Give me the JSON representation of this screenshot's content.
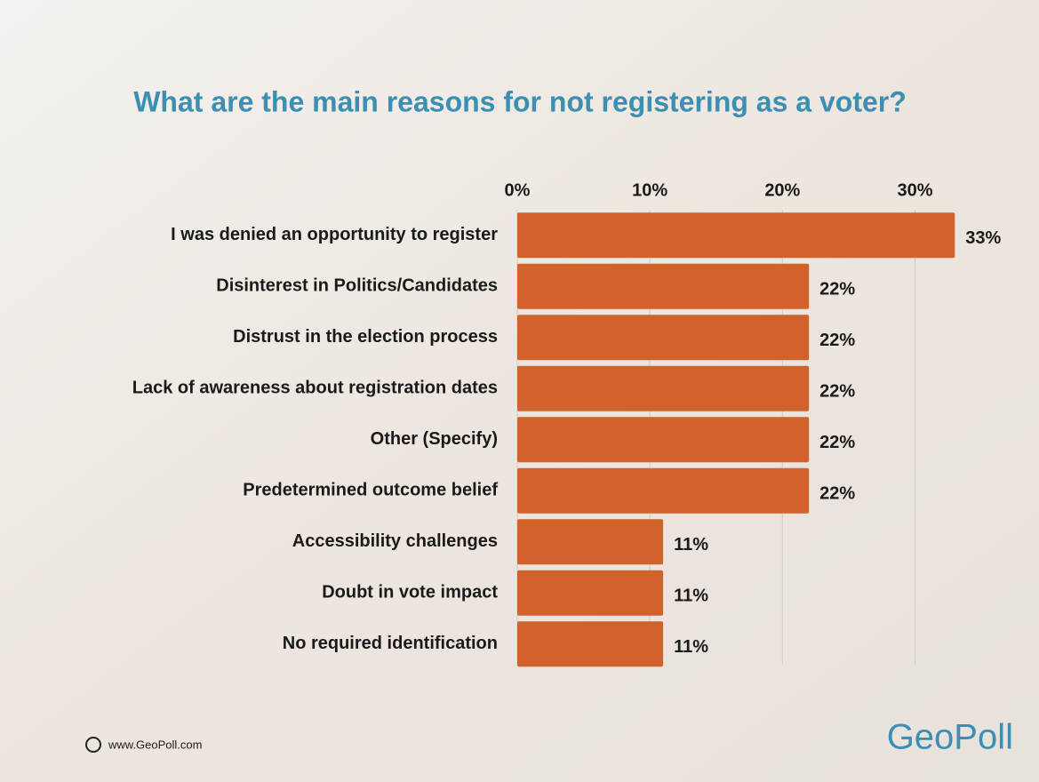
{
  "chart_data": {
    "type": "hbar",
    "title": "What are the main reasons for not registering as a voter?",
    "categories": [
      "I was denied an opportunity to register",
      "Disinterest in Politics/Candidates",
      "Distrust in the election process",
      "Lack of awareness about registration dates",
      "Other (Specify)",
      "Predetermined outcome belief",
      "Accessibility challenges",
      "Doubt in vote impact",
      "No required identification"
    ],
    "values": [
      33,
      22,
      22,
      22,
      22,
      22,
      11,
      11,
      11
    ],
    "value_labels": [
      "33%",
      "22%",
      "22%",
      "22%",
      "22%",
      "22%",
      "11%",
      "11%",
      "11%"
    ],
    "color": "#d2622b",
    "xlim": [
      0,
      36
    ],
    "xticks": [
      {
        "value": 0,
        "label": "0%"
      },
      {
        "value": 10,
        "label": "10%"
      },
      {
        "value": 20,
        "label": "20%"
      },
      {
        "value": 30,
        "label": "30%"
      }
    ],
    "grid": true,
    "footer": "www.GeoPoll.com",
    "logo": "GeoPoll"
  }
}
